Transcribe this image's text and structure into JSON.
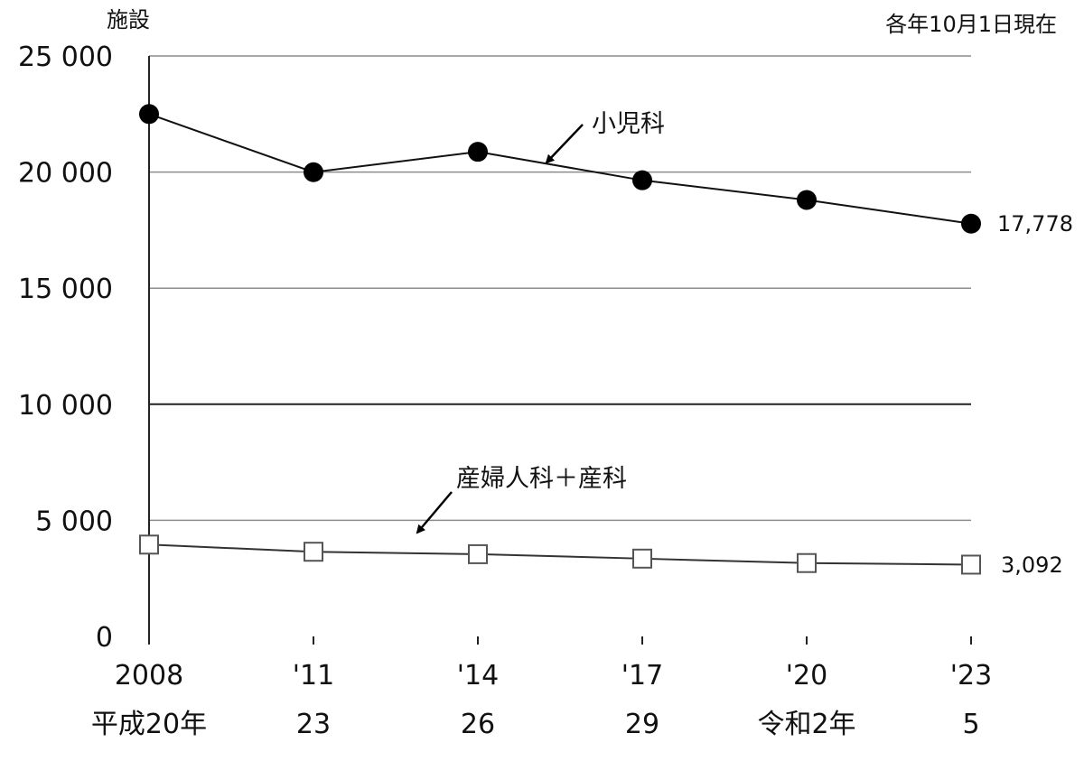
{
  "chart_data": {
    "type": "line",
    "y_unit": "施設",
    "date_note": "各年10月1日現在",
    "ylim": [
      0,
      25000
    ],
    "y_ticks": [
      {
        "value": 0,
        "label": "0"
      },
      {
        "value": 5000,
        "label": "5 000"
      },
      {
        "value": 10000,
        "label": "10 000"
      },
      {
        "value": 15000,
        "label": "15 000"
      },
      {
        "value": 20000,
        "label": "20 000"
      },
      {
        "value": 25000,
        "label": "25 000"
      }
    ],
    "x": [
      2008,
      2011,
      2014,
      2017,
      2020,
      2023
    ],
    "x_tick_labels": [
      "2008",
      "'11",
      "'14",
      "'17",
      "'20",
      "'23"
    ],
    "x_tick_labels_era": [
      "平成20年",
      "23",
      "26",
      "29",
      "令和2年",
      "5"
    ],
    "grid": true,
    "series": [
      {
        "name": "小児科",
        "marker": "filled-circle",
        "color": "#000000",
        "values": [
          22500,
          19994,
          20872,
          19647,
          18798,
          17778
        ],
        "end_label": "17,778"
      },
      {
        "name": "産婦人科＋産科",
        "marker": "open-square",
        "color": "#000000",
        "values": [
          3955,
          3647,
          3542,
          3351,
          3160,
          3092
        ],
        "end_label": "3,092"
      }
    ]
  }
}
